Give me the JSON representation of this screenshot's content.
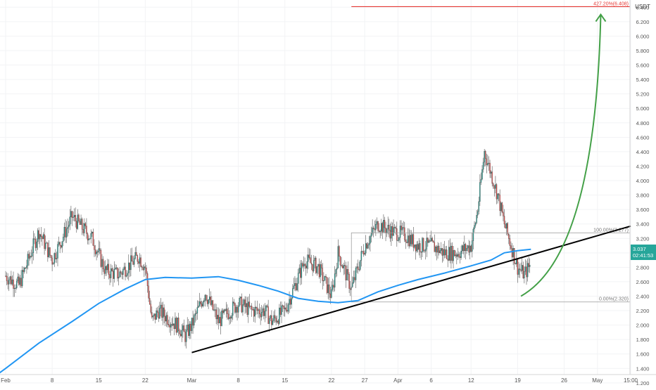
{
  "chart_data": {
    "type": "candlestick",
    "currency": "USDT",
    "y_axis": {
      "ticks": [
        "1.200",
        "1.400",
        "1.600",
        "1.800",
        "2.000",
        "2.200",
        "2.400",
        "2.600",
        "2.800",
        "3.000",
        "3.200",
        "3.400",
        "3.600",
        "3.800",
        "4.000",
        "4.200",
        "4.400",
        "4.600",
        "4.800",
        "5.000",
        "5.200",
        "5.400",
        "5.600",
        "5.800",
        "6.000",
        "6.200",
        "6.400"
      ],
      "range": [
        1.15,
        6.5
      ]
    },
    "x_axis": {
      "labels": [
        {
          "text": "Feb",
          "day": 0
        },
        {
          "text": "8",
          "day": 7
        },
        {
          "text": "15",
          "day": 14
        },
        {
          "text": "22",
          "day": 21
        },
        {
          "text": "Mar",
          "day": 28
        },
        {
          "text": "8",
          "day": 35
        },
        {
          "text": "15",
          "day": 42
        },
        {
          "text": "22",
          "day": 49
        },
        {
          "text": "27",
          "day": 54
        },
        {
          "text": "Apr",
          "day": 59
        },
        {
          "text": "6",
          "day": 64
        },
        {
          "text": "12",
          "day": 70
        },
        {
          "text": "19",
          "day": 77
        },
        {
          "text": "26",
          "day": 84
        },
        {
          "text": "May",
          "day": 89
        },
        {
          "text": "15:00",
          "day": 94
        }
      ],
      "range_days": [
        0,
        94
      ]
    },
    "price_path": [
      [
        0,
        2.68
      ],
      [
        2,
        2.55
      ],
      [
        5,
        3.3
      ],
      [
        7,
        2.9
      ],
      [
        10,
        3.5
      ],
      [
        12,
        3.3
      ],
      [
        13,
        3.2
      ],
      [
        15,
        2.75
      ],
      [
        17,
        2.7
      ],
      [
        20,
        2.95
      ],
      [
        21,
        2.8
      ],
      [
        22,
        2.05
      ],
      [
        23,
        2.2
      ],
      [
        26,
        1.98
      ],
      [
        27,
        1.85
      ],
      [
        28,
        2.0
      ],
      [
        30,
        2.45
      ],
      [
        32,
        2.05
      ],
      [
        35,
        2.3
      ],
      [
        37,
        2.2
      ],
      [
        39,
        2.2
      ],
      [
        40,
        2.05
      ],
      [
        42,
        2.2
      ],
      [
        45,
        2.9
      ],
      [
        47,
        2.8
      ],
      [
        49,
        2.4
      ],
      [
        50,
        3.0
      ],
      [
        52,
        2.5
      ],
      [
        54,
        3.1
      ],
      [
        56,
        3.4
      ],
      [
        58,
        3.3
      ],
      [
        60,
        3.25
      ],
      [
        62,
        3.1
      ],
      [
        64,
        3.1
      ],
      [
        66,
        3.0
      ],
      [
        68,
        3.0
      ],
      [
        70,
        3.1
      ],
      [
        71,
        3.6
      ],
      [
        72,
        4.4
      ],
      [
        73,
        4.1
      ],
      [
        74,
        3.8
      ],
      [
        75,
        3.4
      ],
      [
        76,
        3.1
      ],
      [
        77,
        2.8
      ],
      [
        78,
        2.7
      ],
      [
        79,
        2.85
      ]
    ],
    "moving_average": [
      [
        -3,
        1.2
      ],
      [
        0,
        1.4
      ],
      [
        5,
        1.75
      ],
      [
        10,
        2.05
      ],
      [
        14,
        2.3
      ],
      [
        18,
        2.5
      ],
      [
        21,
        2.63
      ],
      [
        24,
        2.66
      ],
      [
        28,
        2.65
      ],
      [
        32,
        2.67
      ],
      [
        35,
        2.62
      ],
      [
        38,
        2.55
      ],
      [
        41,
        2.47
      ],
      [
        44,
        2.37
      ],
      [
        47,
        2.33
      ],
      [
        50,
        2.31
      ],
      [
        53,
        2.34
      ],
      [
        56,
        2.46
      ],
      [
        59,
        2.55
      ],
      [
        62,
        2.63
      ],
      [
        66,
        2.72
      ],
      [
        70,
        2.82
      ],
      [
        73,
        2.9
      ],
      [
        75,
        3.0
      ],
      [
        77,
        3.03
      ],
      [
        79,
        3.05
      ]
    ],
    "trendline": {
      "start": [
        28,
        1.62
      ],
      "end": [
        94,
        3.37
      ]
    },
    "fib_box": {
      "start_day": 52,
      "high": 3.277,
      "low": 2.32
    },
    "levels": {
      "fib_100": {
        "label": "100.00%(3.277)",
        "value": 3.277
      },
      "fib_0": {
        "label": "0.00%(2.320)",
        "value": 2.32
      },
      "fib_427": {
        "label": "427.20%(6.408)",
        "value": 6.408,
        "start_day": 52,
        "color": "#e53935"
      }
    },
    "projection_arrow": {
      "color": "#43a047",
      "from": [
        77.5,
        2.4
      ],
      "to": [
        89.5,
        6.3
      ]
    },
    "current_price": {
      "value": "3.037",
      "countdown": "02:41:53",
      "level": 3.037,
      "color": "#26a69a"
    },
    "colors": {
      "up": "#26a69a",
      "down": "#ef5350",
      "ma": "#2196f3",
      "trend": "#000000",
      "level": "#9e9e9e"
    }
  }
}
